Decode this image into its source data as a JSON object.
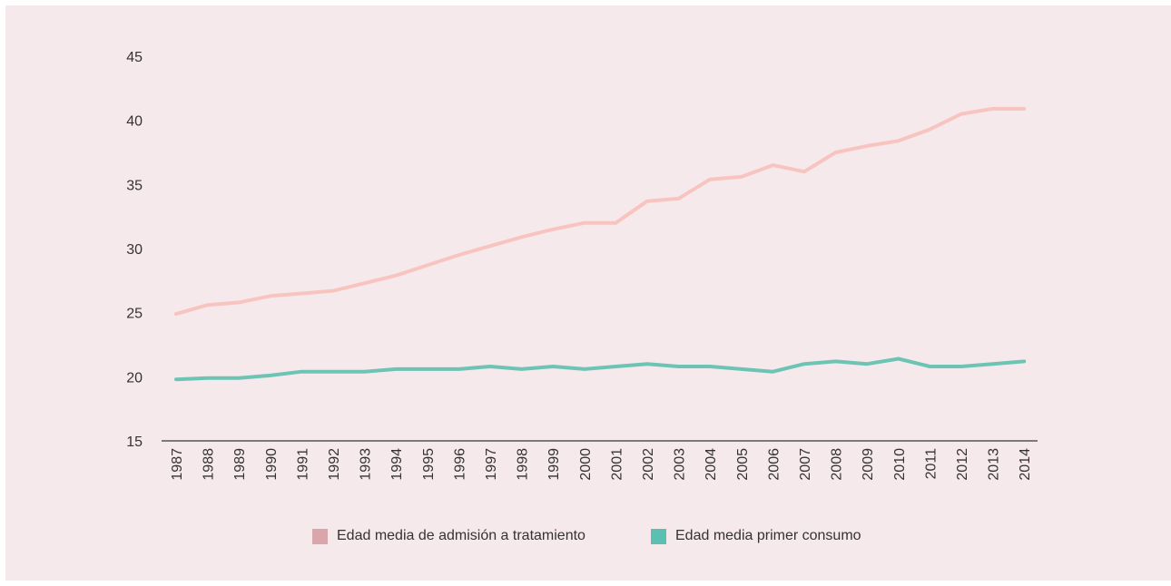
{
  "chart_data": {
    "type": "line",
    "title": "",
    "xlabel": "",
    "ylabel": "",
    "ylim": [
      15,
      45
    ],
    "yticks": [
      15,
      20,
      25,
      30,
      35,
      40,
      45
    ],
    "grid": false,
    "legend_position": "bottom-center",
    "categories": [
      "1987",
      "1988",
      "1989",
      "1990",
      "1991",
      "1992",
      "1993",
      "1994",
      "1995",
      "1996",
      "1997",
      "1998",
      "1999",
      "2000",
      "2001",
      "2002",
      "2003",
      "2004",
      "2005",
      "2006",
      "2007",
      "2008",
      "2009",
      "2010",
      "2011",
      "2012",
      "2013",
      "2014"
    ],
    "series": [
      {
        "name": "Edad media de admisión a tratamiento",
        "color": "#f8c4c0",
        "legend_color": "#d9a6ab",
        "values": [
          24.9,
          25.6,
          25.8,
          26.3,
          26.5,
          26.7,
          27.3,
          27.9,
          28.7,
          29.5,
          30.2,
          30.9,
          31.5,
          32.0,
          32.0,
          33.7,
          33.9,
          35.4,
          35.6,
          36.5,
          36.0,
          37.5,
          38.0,
          38.4,
          39.3,
          40.5,
          40.9,
          40.9
        ]
      },
      {
        "name": "Edad media primer consumo",
        "color": "#6cc4b4",
        "legend_color": "#5cc0b0",
        "values": [
          19.8,
          19.9,
          19.9,
          20.1,
          20.4,
          20.4,
          20.4,
          20.6,
          20.6,
          20.6,
          20.8,
          20.6,
          20.8,
          20.6,
          20.8,
          21.0,
          20.8,
          20.8,
          20.6,
          20.4,
          21.0,
          21.2,
          21.0,
          21.4,
          20.8,
          20.8,
          21.0,
          21.2
        ]
      }
    ]
  }
}
